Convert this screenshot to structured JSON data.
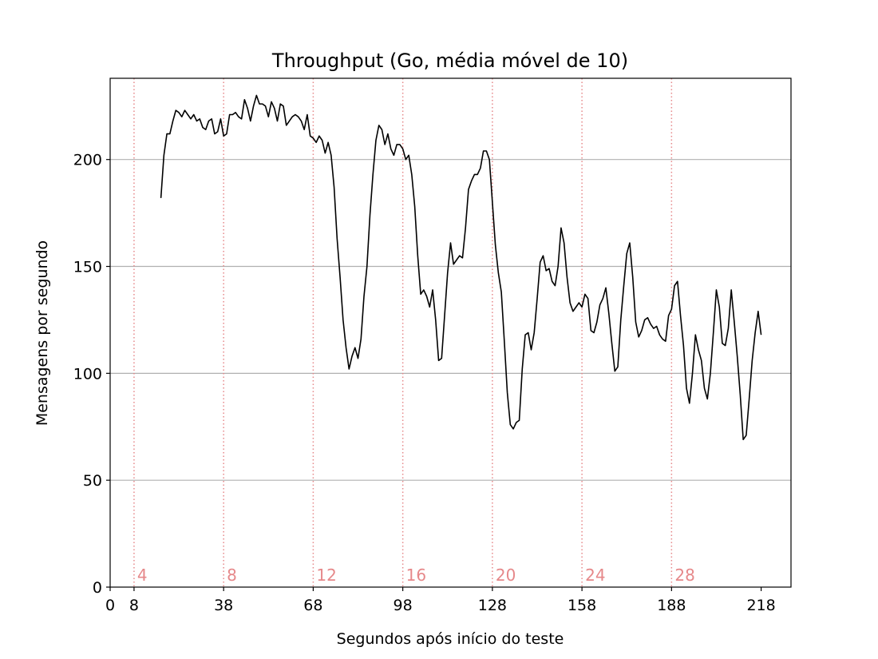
{
  "chart_data": {
    "type": "line",
    "title": "Throughput (Go, média móvel de 10)",
    "xlabel": "Segundos após início do teste",
    "ylabel": "Mensagens por segundo",
    "xlim": [
      0,
      228
    ],
    "ylim": [
      0,
      238
    ],
    "x_ticks": [
      0,
      8,
      38,
      68,
      98,
      128,
      158,
      188,
      218
    ],
    "y_ticks": [
      0,
      50,
      100,
      150,
      200
    ],
    "grid": "horizontal",
    "legend": "none",
    "line_color": "#000000",
    "marker_color": "#e6888a",
    "markers": [
      {
        "x": 8,
        "label": "4"
      },
      {
        "x": 38,
        "label": "8"
      },
      {
        "x": 68,
        "label": "12"
      },
      {
        "x": 98,
        "label": "16"
      },
      {
        "x": 128,
        "label": "20"
      },
      {
        "x": 158,
        "label": "24"
      },
      {
        "x": 188,
        "label": "28"
      }
    ],
    "series": [
      {
        "x": [
          17,
          18,
          19,
          20,
          21,
          22,
          23,
          24,
          25,
          26,
          27,
          28,
          29,
          30,
          31,
          32,
          33,
          34,
          35,
          36,
          37,
          38,
          39,
          40,
          41,
          42,
          43,
          44,
          45,
          46,
          47,
          48,
          49,
          50,
          51,
          52,
          53,
          54,
          55,
          56,
          57,
          58,
          59,
          60,
          61,
          62,
          63,
          64,
          65,
          66,
          67,
          68,
          69,
          70,
          71,
          72,
          73,
          74,
          75,
          76,
          77,
          78,
          79,
          80,
          81,
          82,
          83,
          84,
          85,
          86,
          87,
          88,
          89,
          90,
          91,
          92,
          93,
          94,
          95,
          96,
          97,
          98,
          99,
          100,
          101,
          102,
          103,
          104,
          105,
          106,
          107,
          108,
          109,
          110,
          111,
          112,
          113,
          114,
          115,
          116,
          117,
          118,
          119,
          120,
          121,
          122,
          123,
          124,
          125,
          126,
          127,
          128,
          129,
          130,
          131,
          132,
          133,
          134,
          135,
          136,
          137,
          138,
          139,
          140,
          141,
          142,
          143,
          144,
          145,
          146,
          147,
          148,
          149,
          150,
          151,
          152,
          153,
          154,
          155,
          156,
          157,
          158,
          159,
          160,
          161,
          162,
          163,
          164,
          165,
          166,
          167,
          168,
          169,
          170,
          171,
          172,
          173,
          174,
          175,
          176,
          177,
          178,
          179,
          180,
          181,
          182,
          183,
          184,
          185,
          186,
          187,
          188,
          189,
          190,
          191,
          192,
          193,
          194,
          195,
          196,
          197,
          198,
          199,
          200,
          201,
          202,
          203,
          204,
          205,
          206,
          207,
          208,
          209,
          210,
          211,
          212,
          213,
          214,
          215,
          216,
          217,
          218
        ],
        "y": [
          182,
          202,
          212,
          212,
          218,
          223,
          222,
          220,
          223,
          221,
          219,
          221,
          218,
          219,
          215,
          214,
          218,
          219,
          212,
          213,
          219,
          211,
          212,
          221,
          221,
          222,
          220,
          219,
          228,
          224,
          218,
          225,
          230,
          226,
          226,
          225,
          220,
          227,
          224,
          218,
          226,
          225,
          216,
          218,
          220,
          221,
          220,
          218,
          214,
          221,
          211,
          210,
          208,
          211,
          209,
          203,
          208,
          202,
          187,
          163,
          145,
          125,
          112,
          102,
          108,
          112,
          107,
          116,
          136,
          150,
          174,
          193,
          209,
          216,
          214,
          207,
          212,
          205,
          202,
          207,
          207,
          205,
          200,
          202,
          193,
          178,
          155,
          137,
          139,
          136,
          131,
          139,
          125,
          106,
          107,
          127,
          147,
          161,
          151,
          153,
          155,
          154,
          168,
          186,
          190,
          193,
          193,
          196,
          204,
          204,
          200,
          180,
          160,
          147,
          138,
          115,
          91,
          76,
          74,
          77,
          78,
          102,
          118,
          119,
          111,
          119,
          135,
          152,
          155,
          148,
          149,
          143,
          141,
          150,
          168,
          161,
          145,
          133,
          129,
          131,
          133,
          131,
          137,
          135,
          120,
          119,
          124,
          132,
          135,
          140,
          128,
          114,
          101,
          103,
          125,
          141,
          156,
          161,
          145,
          124,
          117,
          120,
          125,
          126,
          123,
          121,
          122,
          118,
          116,
          115,
          127,
          130,
          141,
          143,
          127,
          113,
          93,
          86,
          100,
          118,
          111,
          106,
          93,
          88,
          100,
          119,
          139,
          131,
          114,
          113,
          121,
          139,
          124,
          108,
          90,
          69,
          71,
          88,
          106,
          119,
          129,
          118
        ]
      }
    ]
  }
}
